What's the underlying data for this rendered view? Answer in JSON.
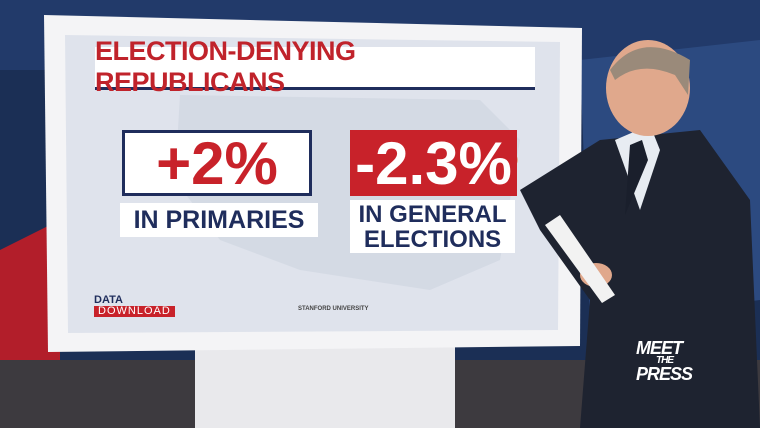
{
  "board": {
    "title": "ELECTION-DENYING REPUBLICANS",
    "left": {
      "figure": "+2%",
      "caption": "IN PRIMARIES"
    },
    "right": {
      "figure": "-2.3%",
      "caption_lines": [
        "IN GENERAL",
        "ELECTIONS"
      ]
    },
    "segment": {
      "line1": "DATA",
      "line2": "DOWNLOAD"
    },
    "source": "STANFORD UNIVERSITY"
  },
  "logo": {
    "lines": [
      "MEET",
      "THE",
      "PRESS"
    ]
  }
}
